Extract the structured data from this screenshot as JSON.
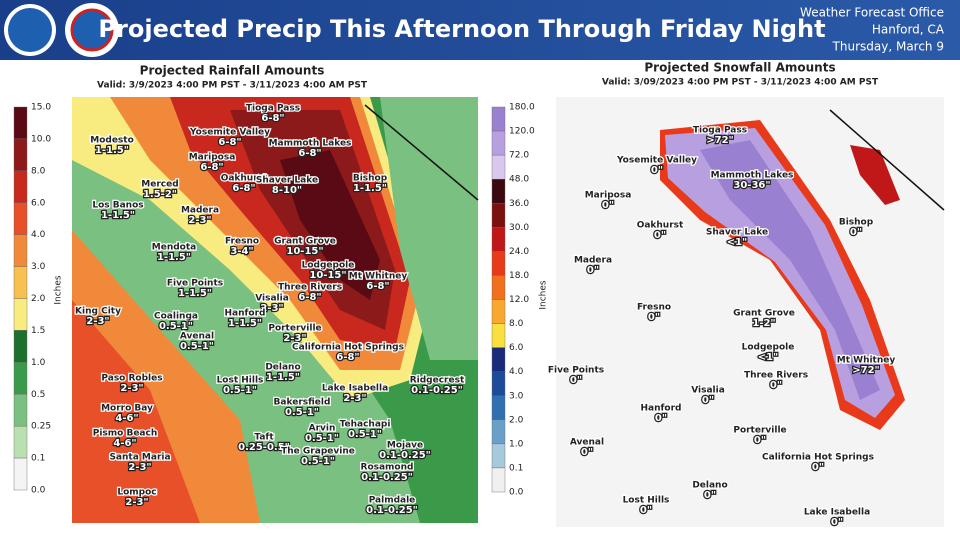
{
  "header": {
    "title": "Projected Precip This Afternoon Through Friday Night",
    "office": [
      "Weather Forecast Office",
      "Hanford, CA",
      "Thursday, March 9"
    ]
  },
  "rainfall": {
    "title": "Projected Rainfall Amounts",
    "valid": "Valid: 3/9/2023 4:00 PM PST - 3/11/2023 4:00 AM PST",
    "units": "Inches",
    "scale": [
      "15.0",
      "10.0",
      "8.0",
      "6.0",
      "4.0",
      "3.0",
      "2.0",
      "1.5",
      "1.0",
      "0.5",
      "0.25",
      "0.1",
      "0.0"
    ],
    "locations": [
      {
        "name": "Tioga Pass",
        "amount": "6-8\""
      },
      {
        "name": "Modesto",
        "amount": "1-1.5\""
      },
      {
        "name": "Yosemite Valley",
        "amount": "6-8\""
      },
      {
        "name": "Mammoth Lakes",
        "amount": "6-8\""
      },
      {
        "name": "Mariposa",
        "amount": "6-8\""
      },
      {
        "name": "Oakhurst",
        "amount": "6-8\""
      },
      {
        "name": "Shaver Lake",
        "amount": "8-10\""
      },
      {
        "name": "Bishop",
        "amount": "1-1.5\""
      },
      {
        "name": "Merced",
        "amount": "1.5-2\""
      },
      {
        "name": "Los Banos",
        "amount": "1-1.5\""
      },
      {
        "name": "Madera",
        "amount": "2-3\""
      },
      {
        "name": "Fresno",
        "amount": "3-4\""
      },
      {
        "name": "Grant Grove",
        "amount": "10-15\""
      },
      {
        "name": "Mendota",
        "amount": "1-1.5\""
      },
      {
        "name": "Lodgepole",
        "amount": "10-15\""
      },
      {
        "name": "Mt Whitney",
        "amount": "6-8\""
      },
      {
        "name": "Three Rivers",
        "amount": "6-8\""
      },
      {
        "name": "Five Points",
        "amount": "1-1.5\""
      },
      {
        "name": "Visalia",
        "amount": "2-3\""
      },
      {
        "name": "King City",
        "amount": "2-3\""
      },
      {
        "name": "Coalinga",
        "amount": "0.5-1\""
      },
      {
        "name": "Hanford",
        "amount": "1-1.5\""
      },
      {
        "name": "Avenal",
        "amount": "0.5-1\""
      },
      {
        "name": "Porterville",
        "amount": "2-3\""
      },
      {
        "name": "California Hot Springs",
        "amount": "6-8\""
      },
      {
        "name": "Delano",
        "amount": "1-1.5\""
      },
      {
        "name": "Paso Robles",
        "amount": "2-3\""
      },
      {
        "name": "Lost Hills",
        "amount": "0.5-1\""
      },
      {
        "name": "Lake Isabella",
        "amount": "2-3\""
      },
      {
        "name": "Ridgecrest",
        "amount": "0.1-0.25\""
      },
      {
        "name": "Morro Bay",
        "amount": "4-6\""
      },
      {
        "name": "Bakersfield",
        "amount": "0.5-1\""
      },
      {
        "name": "Pismo Beach",
        "amount": "4-6\""
      },
      {
        "name": "Taft",
        "amount": "0.25-0.5\""
      },
      {
        "name": "Arvin",
        "amount": "0.5-1\""
      },
      {
        "name": "Tehachapi",
        "amount": "0.5-1\""
      },
      {
        "name": "Santa Maria",
        "amount": "2-3\""
      },
      {
        "name": "The Grapevine",
        "amount": "0.5-1\""
      },
      {
        "name": "Mojave",
        "amount": "0.1-0.25\""
      },
      {
        "name": "Rosamond",
        "amount": "0.1-0.25\""
      },
      {
        "name": "Lompoc",
        "amount": "2-3\""
      },
      {
        "name": "Palmdale",
        "amount": "0.1-0.25\""
      }
    ]
  },
  "snowfall": {
    "title": "Projected Snowfall Amounts",
    "valid": "Valid: 3/09/2023 4:00 PM PST - 3/11/2023 4:00 AM PST",
    "units": "Inches",
    "scale": [
      "180.0",
      "120.0",
      "72.0",
      "48.0",
      "36.0",
      "30.0",
      "24.0",
      "18.0",
      "12.0",
      "8.0",
      "6.0",
      "4.0",
      "3.0",
      "2.0",
      "1.0",
      "0.1",
      "0.0"
    ],
    "locations": [
      {
        "name": "Tioga Pass",
        "amount": ">72\""
      },
      {
        "name": "Yosemite Valley",
        "amount": "0\""
      },
      {
        "name": "Mammoth Lakes",
        "amount": "30-36\""
      },
      {
        "name": "Bishop",
        "amount": "0\""
      },
      {
        "name": "Mariposa",
        "amount": "0\""
      },
      {
        "name": "Oakhurst",
        "amount": "0\""
      },
      {
        "name": "Shaver Lake",
        "amount": "<1\""
      },
      {
        "name": "Madera",
        "amount": "0\""
      },
      {
        "name": "Fresno",
        "amount": "0\""
      },
      {
        "name": "Grant Grove",
        "amount": "1-2\""
      },
      {
        "name": "Lodgepole",
        "amount": "<1\""
      },
      {
        "name": "Mt Whitney",
        "amount": ">72\""
      },
      {
        "name": "Five Points",
        "amount": "0\""
      },
      {
        "name": "Three Rivers",
        "amount": "0\""
      },
      {
        "name": "Visalia",
        "amount": "0\""
      },
      {
        "name": "Hanford",
        "amount": "0\""
      },
      {
        "name": "Porterville",
        "amount": "0\""
      },
      {
        "name": "Avenal",
        "amount": "0\""
      },
      {
        "name": "California Hot Springs",
        "amount": "0\""
      },
      {
        "name": "Delano",
        "amount": "0\""
      },
      {
        "name": "Lost Hills",
        "amount": "0\""
      },
      {
        "name": "Lake Isabella",
        "amount": "0\""
      }
    ]
  }
}
